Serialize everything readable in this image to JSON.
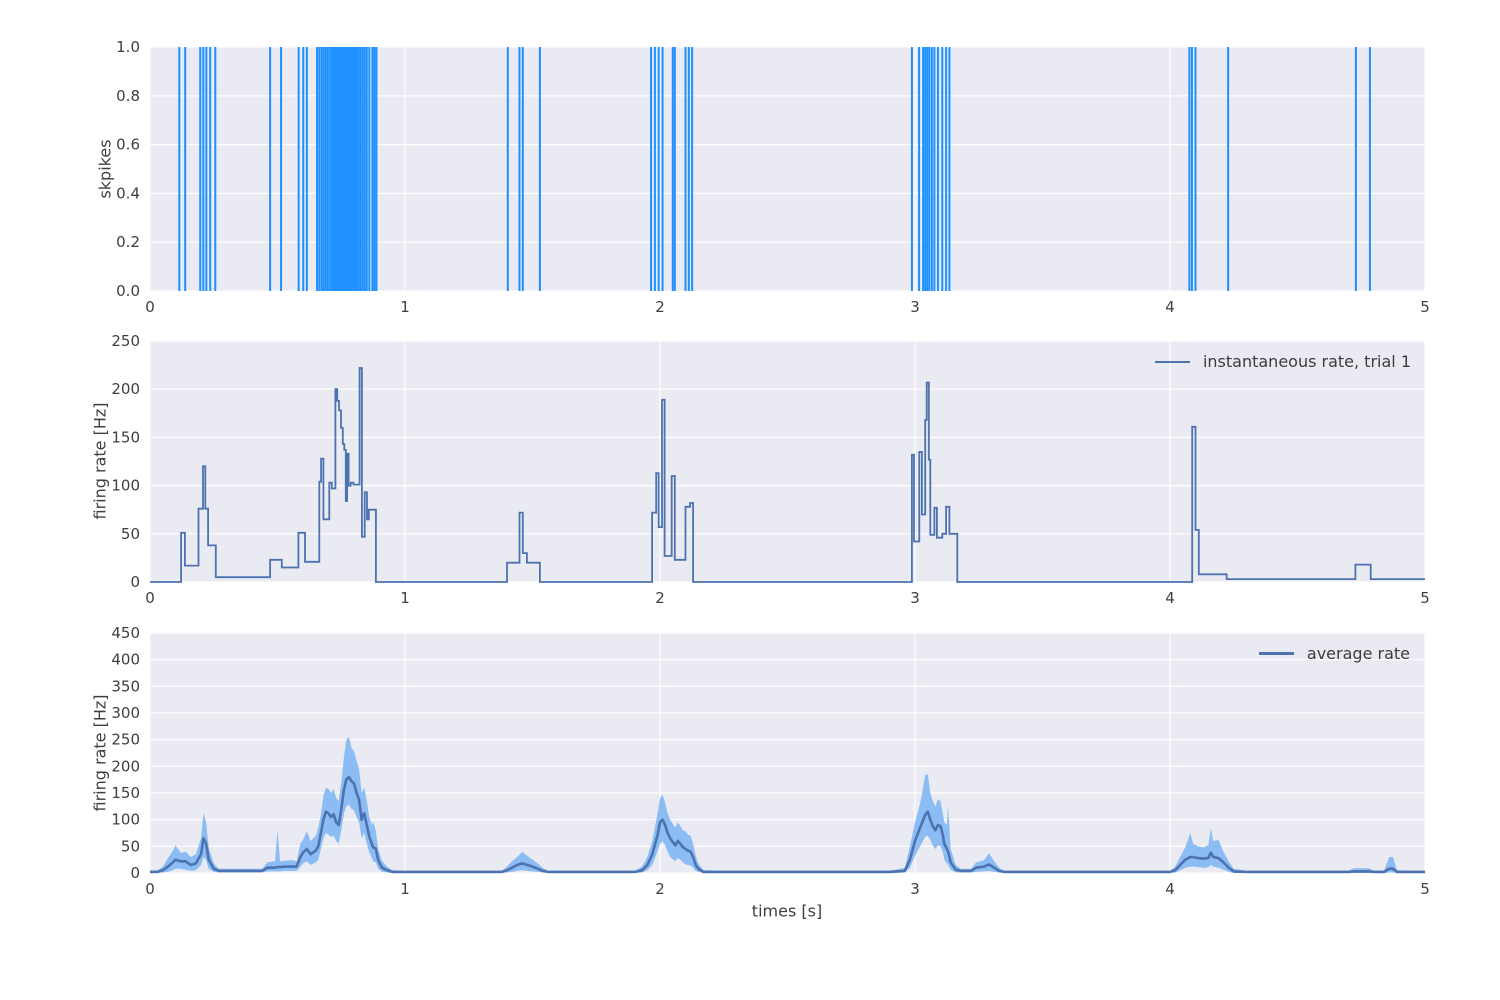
{
  "figure": {
    "background": "#ffffff",
    "panel_background": "#eaeaf2",
    "grid_color": "#ffffff",
    "text_color": "#3f3f3f",
    "xlabel": "times [s]",
    "x_ticks": [
      "0",
      "1",
      "2",
      "3",
      "4",
      "5"
    ],
    "panels": [
      {
        "ylabel": "skpikes",
        "y_ticks": [
          "1.0",
          "0.8",
          "0.6",
          "0.4",
          "0.2",
          "0.0"
        ],
        "legend": null
      },
      {
        "ylabel": "firing rate [Hz]",
        "y_ticks": [
          "250",
          "200",
          "150",
          "100",
          "50",
          "0"
        ],
        "legend": "instantaneous rate, trial 1"
      },
      {
        "ylabel": "firing rate [Hz]",
        "y_ticks": [
          "450",
          "400",
          "350",
          "300",
          "250",
          "200",
          "150",
          "100",
          "50",
          "0"
        ],
        "legend": "average rate"
      }
    ]
  },
  "chart_data": [
    {
      "type": "event-raster",
      "ylabel": "skpikes",
      "xlim": [
        0,
        5
      ],
      "ylim": [
        0,
        1
      ],
      "color": "#1e90ff",
      "spike_times": [
        0.115,
        0.138,
        0.197,
        0.209,
        0.221,
        0.236,
        0.256,
        0.471,
        0.514,
        0.583,
        0.601,
        0.615,
        0.655,
        0.664,
        0.673,
        0.681,
        0.689,
        0.697,
        0.705,
        0.713,
        0.72,
        0.727,
        0.734,
        0.741,
        0.748,
        0.755,
        0.762,
        0.769,
        0.776,
        0.783,
        0.79,
        0.797,
        0.804,
        0.811,
        0.818,
        0.826,
        0.834,
        0.842,
        0.85,
        0.86,
        0.872,
        0.88,
        0.888,
        1.403,
        1.449,
        1.462,
        1.529,
        1.965,
        1.98,
        1.995,
        2.01,
        2.05,
        2.058,
        2.1,
        2.113,
        2.126,
        2.988,
        3.016,
        3.032,
        3.04,
        3.048,
        3.056,
        3.066,
        3.076,
        3.09,
        3.107,
        3.122,
        3.135,
        4.076,
        4.086,
        4.1,
        4.228,
        4.729,
        4.784
      ]
    },
    {
      "type": "line",
      "name": "instantaneous rate, trial 1",
      "step": "post",
      "ylabel": "firing rate [Hz]",
      "xlim": [
        0,
        5
      ],
      "ylim": [
        0,
        250
      ],
      "color": "#4c72b0",
      "points": [
        [
          0,
          0
        ],
        [
          0.122,
          51
        ],
        [
          0.137,
          17
        ],
        [
          0.19,
          76
        ],
        [
          0.208,
          120
        ],
        [
          0.217,
          76
        ],
        [
          0.228,
          38
        ],
        [
          0.258,
          5
        ],
        [
          0.471,
          23
        ],
        [
          0.517,
          15
        ],
        [
          0.582,
          51
        ],
        [
          0.608,
          21
        ],
        [
          0.664,
          104
        ],
        [
          0.671,
          128
        ],
        [
          0.68,
          65
        ],
        [
          0.703,
          103
        ],
        [
          0.713,
          97
        ],
        [
          0.727,
          200
        ],
        [
          0.734,
          188
        ],
        [
          0.741,
          178
        ],
        [
          0.749,
          160
        ],
        [
          0.756,
          143
        ],
        [
          0.762,
          137
        ],
        [
          0.768,
          84
        ],
        [
          0.773,
          133
        ],
        [
          0.779,
          100
        ],
        [
          0.787,
          103
        ],
        [
          0.798,
          101
        ],
        [
          0.822,
          222
        ],
        [
          0.831,
          47
        ],
        [
          0.842,
          93
        ],
        [
          0.851,
          65
        ],
        [
          0.858,
          75
        ],
        [
          0.886,
          0
        ],
        [
          1.4,
          20
        ],
        [
          1.449,
          72
        ],
        [
          1.462,
          30
        ],
        [
          1.478,
          20
        ],
        [
          1.529,
          0
        ],
        [
          1.969,
          72
        ],
        [
          1.985,
          113
        ],
        [
          1.995,
          57
        ],
        [
          2.008,
          189
        ],
        [
          2.018,
          27
        ],
        [
          2.046,
          110
        ],
        [
          2.058,
          23
        ],
        [
          2.1,
          78
        ],
        [
          2.118,
          82
        ],
        [
          2.13,
          0
        ],
        [
          2.988,
          132
        ],
        [
          2.996,
          42
        ],
        [
          3.017,
          135
        ],
        [
          3.027,
          70
        ],
        [
          3.04,
          168
        ],
        [
          3.046,
          207
        ],
        [
          3.054,
          127
        ],
        [
          3.06,
          49
        ],
        [
          3.076,
          77
        ],
        [
          3.086,
          46
        ],
        [
          3.107,
          50
        ],
        [
          3.122,
          78
        ],
        [
          3.135,
          50
        ],
        [
          3.166,
          0
        ],
        [
          4.087,
          161
        ],
        [
          4.1,
          54
        ],
        [
          4.113,
          8
        ],
        [
          4.222,
          3
        ],
        [
          4.727,
          18
        ],
        [
          4.787,
          3
        ]
      ]
    },
    {
      "type": "area",
      "name": "average rate",
      "ylabel": "firing rate [Hz]",
      "xlabel": "times [s]",
      "xlim": [
        0,
        5
      ],
      "ylim": [
        0,
        450
      ],
      "line_color": "#4c72b0",
      "band_color": "#8cbcf4",
      "samples": [
        [
          0.0,
          2,
          0,
          4
        ],
        [
          0.03,
          2,
          0,
          5
        ],
        [
          0.05,
          5,
          1,
          12
        ],
        [
          0.07,
          12,
          2,
          28
        ],
        [
          0.09,
          20,
          5,
          42
        ],
        [
          0.1,
          25,
          8,
          52
        ],
        [
          0.12,
          22,
          8,
          38
        ],
        [
          0.14,
          22,
          6,
          40
        ],
        [
          0.16,
          15,
          4,
          30
        ],
        [
          0.18,
          18,
          5,
          35
        ],
        [
          0.2,
          35,
          15,
          65
        ],
        [
          0.21,
          65,
          30,
          113
        ],
        [
          0.22,
          55,
          25,
          95
        ],
        [
          0.23,
          25,
          8,
          48
        ],
        [
          0.25,
          8,
          2,
          18
        ],
        [
          0.27,
          4,
          1,
          8
        ],
        [
          0.32,
          4,
          1,
          8
        ],
        [
          0.38,
          4,
          1,
          8
        ],
        [
          0.44,
          4,
          1,
          8
        ],
        [
          0.46,
          10,
          3,
          20
        ],
        [
          0.49,
          10,
          3,
          22
        ],
        [
          0.5,
          11,
          3,
          80
        ],
        [
          0.51,
          11,
          3,
          22
        ],
        [
          0.53,
          12,
          4,
          23
        ],
        [
          0.56,
          12,
          4,
          24
        ],
        [
          0.575,
          12,
          4,
          22
        ],
        [
          0.59,
          30,
          12,
          55
        ],
        [
          0.6,
          38,
          18,
          62
        ],
        [
          0.615,
          45,
          22,
          78
        ],
        [
          0.63,
          35,
          15,
          60
        ],
        [
          0.65,
          42,
          20,
          70
        ],
        [
          0.66,
          50,
          25,
          85
        ],
        [
          0.67,
          75,
          45,
          110
        ],
        [
          0.68,
          100,
          65,
          145
        ],
        [
          0.69,
          115,
          75,
          160
        ],
        [
          0.7,
          112,
          72,
          158
        ],
        [
          0.71,
          105,
          68,
          150
        ],
        [
          0.72,
          110,
          70,
          158
        ],
        [
          0.73,
          95,
          60,
          140
        ],
        [
          0.74,
          90,
          55,
          135
        ],
        [
          0.75,
          120,
          80,
          170
        ],
        [
          0.76,
          155,
          110,
          215
        ],
        [
          0.77,
          175,
          125,
          250
        ],
        [
          0.78,
          180,
          128,
          255
        ],
        [
          0.79,
          172,
          120,
          235
        ],
        [
          0.8,
          168,
          118,
          228
        ],
        [
          0.81,
          150,
          105,
          210
        ],
        [
          0.82,
          137,
          95,
          195
        ],
        [
          0.83,
          100,
          65,
          150
        ],
        [
          0.84,
          112,
          75,
          160
        ],
        [
          0.85,
          90,
          55,
          135
        ],
        [
          0.86,
          68,
          38,
          105
        ],
        [
          0.87,
          55,
          28,
          90
        ],
        [
          0.875,
          48,
          22,
          96
        ],
        [
          0.885,
          46,
          20,
          80
        ],
        [
          0.895,
          24,
          8,
          45
        ],
        [
          0.91,
          10,
          2,
          22
        ],
        [
          0.93,
          5,
          1,
          12
        ],
        [
          0.95,
          2,
          0,
          5
        ],
        [
          1.0,
          2,
          0,
          4
        ],
        [
          1.1,
          2,
          0,
          4
        ],
        [
          1.2,
          2,
          0,
          4
        ],
        [
          1.3,
          2,
          0,
          4
        ],
        [
          1.38,
          2,
          0,
          4
        ],
        [
          1.4,
          5,
          1,
          12
        ],
        [
          1.42,
          10,
          2,
          22
        ],
        [
          1.44,
          15,
          4,
          30
        ],
        [
          1.46,
          18,
          5,
          40
        ],
        [
          1.48,
          15,
          4,
          32
        ],
        [
          1.5,
          12,
          3,
          25
        ],
        [
          1.52,
          8,
          2,
          18
        ],
        [
          1.54,
          4,
          1,
          10
        ],
        [
          1.56,
          2,
          0,
          4
        ],
        [
          1.7,
          2,
          0,
          4
        ],
        [
          1.85,
          2,
          0,
          4
        ],
        [
          1.9,
          2,
          0,
          4
        ],
        [
          1.93,
          5,
          1,
          12
        ],
        [
          1.95,
          15,
          5,
          30
        ],
        [
          1.97,
          35,
          15,
          60
        ],
        [
          1.99,
          70,
          40,
          110
        ],
        [
          2.0,
          95,
          55,
          140
        ],
        [
          2.01,
          100,
          60,
          147
        ],
        [
          2.02,
          90,
          52,
          132
        ],
        [
          2.03,
          75,
          40,
          112
        ],
        [
          2.04,
          65,
          30,
          100
        ],
        [
          2.05,
          58,
          26,
          92
        ],
        [
          2.06,
          52,
          22,
          85
        ],
        [
          2.07,
          60,
          28,
          95
        ],
        [
          2.08,
          55,
          25,
          88
        ],
        [
          2.09,
          48,
          20,
          80
        ],
        [
          2.1,
          45,
          16,
          78
        ],
        [
          2.11,
          42,
          15,
          72
        ],
        [
          2.12,
          40,
          14,
          70
        ],
        [
          2.13,
          30,
          10,
          55
        ],
        [
          2.14,
          15,
          4,
          32
        ],
        [
          2.15,
          8,
          2,
          18
        ],
        [
          2.17,
          2,
          0,
          5
        ],
        [
          2.3,
          2,
          0,
          4
        ],
        [
          2.5,
          2,
          0,
          4
        ],
        [
          2.7,
          2,
          0,
          4
        ],
        [
          2.9,
          2,
          0,
          4
        ],
        [
          2.96,
          4,
          1,
          10
        ],
        [
          2.98,
          25,
          10,
          50
        ],
        [
          3.0,
          60,
          32,
          95
        ],
        [
          3.02,
          85,
          50,
          130
        ],
        [
          3.04,
          109,
          68,
          184
        ],
        [
          3.05,
          115,
          70,
          185
        ],
        [
          3.06,
          100,
          62,
          150
        ],
        [
          3.07,
          88,
          52,
          135
        ],
        [
          3.08,
          80,
          45,
          125
        ],
        [
          3.09,
          90,
          52,
          138
        ],
        [
          3.1,
          88,
          50,
          135
        ],
        [
          3.11,
          70,
          38,
          110
        ],
        [
          3.115,
          55,
          25,
          95
        ],
        [
          3.125,
          45,
          18,
          90
        ],
        [
          3.13,
          40,
          15,
          127
        ],
        [
          3.14,
          20,
          6,
          45
        ],
        [
          3.16,
          6,
          1,
          15
        ],
        [
          3.18,
          4,
          1,
          8
        ],
        [
          3.22,
          4,
          1,
          8
        ],
        [
          3.24,
          10,
          2,
          20
        ],
        [
          3.27,
          12,
          3,
          24
        ],
        [
          3.29,
          16,
          4,
          37
        ],
        [
          3.31,
          10,
          2,
          22
        ],
        [
          3.33,
          4,
          1,
          10
        ],
        [
          3.35,
          2,
          0,
          4
        ],
        [
          3.5,
          2,
          0,
          4
        ],
        [
          3.7,
          2,
          0,
          4
        ],
        [
          3.9,
          2,
          0,
          4
        ],
        [
          4.0,
          2,
          0,
          4
        ],
        [
          4.02,
          5,
          1,
          12
        ],
        [
          4.04,
          15,
          5,
          30
        ],
        [
          4.06,
          25,
          10,
          48
        ],
        [
          4.08,
          30,
          12,
          75
        ],
        [
          4.09,
          30,
          12,
          55
        ],
        [
          4.11,
          28,
          11,
          50
        ],
        [
          4.13,
          27,
          10,
          48
        ],
        [
          4.15,
          28,
          11,
          52
        ],
        [
          4.16,
          38,
          15,
          85
        ],
        [
          4.17,
          30,
          12,
          60
        ],
        [
          4.19,
          28,
          10,
          62
        ],
        [
          4.21,
          20,
          6,
          40
        ],
        [
          4.23,
          10,
          2,
          22
        ],
        [
          4.25,
          3,
          0,
          8
        ],
        [
          4.3,
          2,
          0,
          4
        ],
        [
          4.5,
          2,
          0,
          4
        ],
        [
          4.7,
          2,
          0,
          4
        ],
        [
          4.72,
          3,
          0,
          9
        ],
        [
          4.75,
          3,
          0,
          9
        ],
        [
          4.78,
          3,
          0,
          9
        ],
        [
          4.8,
          2,
          0,
          4
        ],
        [
          4.84,
          2,
          0,
          5
        ],
        [
          4.86,
          8,
          1,
          30
        ],
        [
          4.875,
          8,
          1,
          30
        ],
        [
          4.89,
          2,
          0,
          5
        ],
        [
          5.0,
          2,
          0,
          4
        ]
      ]
    }
  ]
}
